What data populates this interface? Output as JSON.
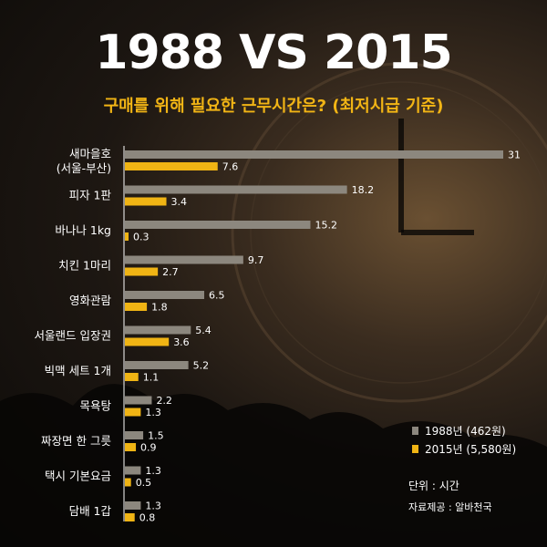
{
  "title": "1988 VS 2015",
  "subtitle": "구매를 위해 필요한 근무시간은? (최저시급 기준)",
  "unit_label": "단위 : 시간",
  "source_label": "자료제공 : 알바천국",
  "colors": {
    "series_1988": "#8c877e",
    "series_2015": "#f0b414",
    "axis": "#ffffff",
    "title": "#ffffff",
    "subtitle": "#f2b515"
  },
  "chart_data": {
    "type": "bar",
    "orientation": "horizontal",
    "title": "1988 VS 2015",
    "subtitle": "구매를 위해 필요한 근무시간은? (최저시급 기준)",
    "xlabel": "",
    "ylabel": "",
    "xlim": [
      0,
      31
    ],
    "grid": false,
    "legend_position": "bottom-right",
    "categories": [
      [
        "새마을호",
        "(서울-부산)"
      ],
      [
        "피자 1판"
      ],
      [
        "바나나 1kg"
      ],
      [
        "치킨 1마리"
      ],
      [
        "영화관람"
      ],
      [
        "서울랜드 입장권"
      ],
      [
        "빅맥 세트 1개"
      ],
      [
        "목욕탕"
      ],
      [
        "짜장면 한 그릇"
      ],
      [
        "택시 기본요금"
      ],
      [
        "담배 1갑"
      ]
    ],
    "series": [
      {
        "name": "1988년 (462원)",
        "color": "#8c877e",
        "values": [
          31,
          18.2,
          15.2,
          9.7,
          6.5,
          5.4,
          5.2,
          2.2,
          1.5,
          1.3,
          1.3
        ]
      },
      {
        "name": "2015년 (5,580원)",
        "color": "#f0b414",
        "values": [
          7.6,
          3.4,
          0.3,
          2.7,
          1.8,
          3.6,
          1.1,
          1.3,
          0.9,
          0.5,
          0.8
        ]
      }
    ]
  }
}
